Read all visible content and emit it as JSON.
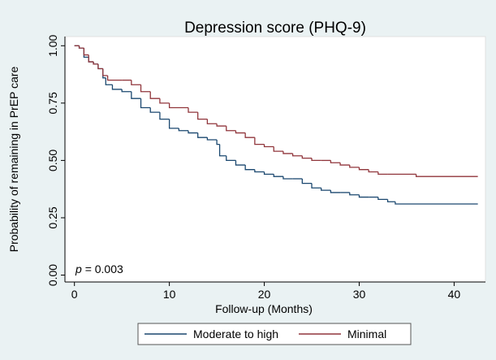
{
  "chart_data": {
    "type": "step",
    "title": "Depression score (PHQ-9)",
    "x_label": "Follow-up (Months)",
    "y_label": "Probability of remaining in PrEP care",
    "annotation": {
      "italic": "p",
      "text": "= 0.003"
    },
    "xlim": [
      -1,
      43.3
    ],
    "xticks": [
      0,
      10,
      20,
      30,
      40
    ],
    "ylim": [
      -0.03,
      1.04
    ],
    "yticks": [
      {
        "value": 0,
        "label": "0.00"
      },
      {
        "value": 0.25,
        "label": "0.25"
      },
      {
        "value": 0.5,
        "label": "0.50"
      },
      {
        "value": 0.75,
        "label": "0.75"
      },
      {
        "value": 1,
        "label": "1.00"
      }
    ],
    "grid": false,
    "legend": "bottom",
    "series": [
      {
        "name": "Moderate to high",
        "color": "#1a476f",
        "x": [
          0,
          0.5,
          1,
          1.5,
          2,
          2.5,
          3,
          3.3,
          4,
          5,
          6,
          7,
          8,
          9,
          10,
          11,
          12,
          13,
          14,
          15,
          15.3,
          16,
          17,
          18,
          19,
          20,
          21,
          22,
          23,
          24,
          25,
          26,
          27,
          28,
          29,
          30,
          31,
          32,
          33,
          33.8,
          42.5
        ],
        "values": [
          1.0,
          0.99,
          0.95,
          0.93,
          0.92,
          0.9,
          0.86,
          0.83,
          0.81,
          0.8,
          0.77,
          0.73,
          0.71,
          0.68,
          0.64,
          0.63,
          0.62,
          0.6,
          0.59,
          0.57,
          0.52,
          0.5,
          0.48,
          0.46,
          0.45,
          0.44,
          0.43,
          0.42,
          0.42,
          0.4,
          0.38,
          0.37,
          0.36,
          0.36,
          0.35,
          0.34,
          0.34,
          0.33,
          0.32,
          0.31,
          0.31
        ]
      },
      {
        "name": "Minimal",
        "color": "#90353b",
        "x": [
          0,
          0.5,
          1,
          1.5,
          2,
          2.5,
          3,
          3.5,
          5,
          6,
          7,
          8,
          9,
          10,
          12,
          13,
          14,
          15,
          16,
          17,
          18,
          19,
          20,
          21,
          22,
          23,
          24,
          25,
          26,
          27,
          28,
          29,
          30,
          31,
          32,
          33,
          36,
          42.5
        ],
        "values": [
          1.0,
          0.99,
          0.96,
          0.93,
          0.92,
          0.9,
          0.87,
          0.85,
          0.85,
          0.83,
          0.8,
          0.77,
          0.75,
          0.73,
          0.71,
          0.68,
          0.66,
          0.65,
          0.63,
          0.62,
          0.6,
          0.57,
          0.56,
          0.54,
          0.53,
          0.52,
          0.51,
          0.5,
          0.5,
          0.49,
          0.48,
          0.47,
          0.46,
          0.45,
          0.44,
          0.44,
          0.43,
          0.43
        ]
      }
    ]
  }
}
